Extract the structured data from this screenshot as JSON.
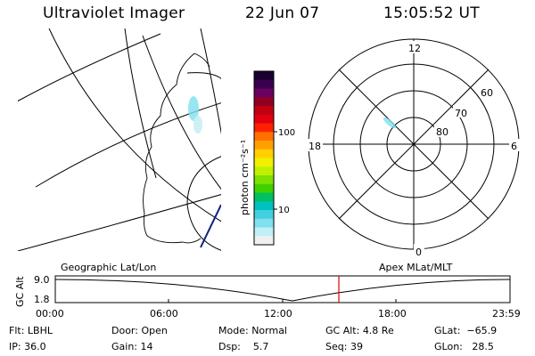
{
  "header": {
    "instrument": "Ultraviolet Imager",
    "date": "22 Jun 07",
    "time": "15:05:52 UT"
  },
  "colorbar": {
    "unit_label": "photon cm⁻²s⁻¹",
    "tick_labels": [
      "100",
      "10"
    ],
    "colors": [
      "#1a0030",
      "#3a0050",
      "#6a0060",
      "#900020",
      "#c00010",
      "#e00010",
      "#ff2000",
      "#ff7000",
      "#ffa000",
      "#ffd000",
      "#f0f000",
      "#c0f000",
      "#80e000",
      "#40d000",
      "#00c060",
      "#00c0c0",
      "#40d0e0",
      "#80e0f0",
      "#c0f0f8",
      "#f0f0f0"
    ]
  },
  "geo_panel": {
    "label": "Geographic Lat/Lon"
  },
  "polar_panel": {
    "label": "Apex MLat/MLT",
    "mlt_labels": [
      "12",
      "18",
      "6",
      "0"
    ],
    "lat_labels": [
      "60",
      "70",
      "80"
    ]
  },
  "altitude_plot": {
    "ylabel": "GC Alt",
    "y_ticks": [
      "9.0",
      "1.8"
    ],
    "x_ticks": [
      "00:00",
      "06:00",
      "12:00",
      "18:00",
      "23:59"
    ],
    "current_time_marker_color": "#e00000"
  },
  "info": {
    "row1": [
      {
        "label": "Flt:",
        "value": "LBHL"
      },
      {
        "label": "Door:",
        "value": "Open"
      },
      {
        "label": "Mode:",
        "value": "Normal"
      },
      {
        "label": "GC Alt:",
        "value": "4.8 Re"
      },
      {
        "label": "GLat:",
        "value": "−65.9"
      }
    ],
    "row2": [
      {
        "label": "IP:",
        "value": "36.0"
      },
      {
        "label": "Gain:",
        "value": "14"
      },
      {
        "label": "Dsp:",
        "value": "5.7"
      },
      {
        "label": "Seq:",
        "value": "39"
      },
      {
        "label": "GLon:",
        "value": "28.5"
      }
    ]
  }
}
